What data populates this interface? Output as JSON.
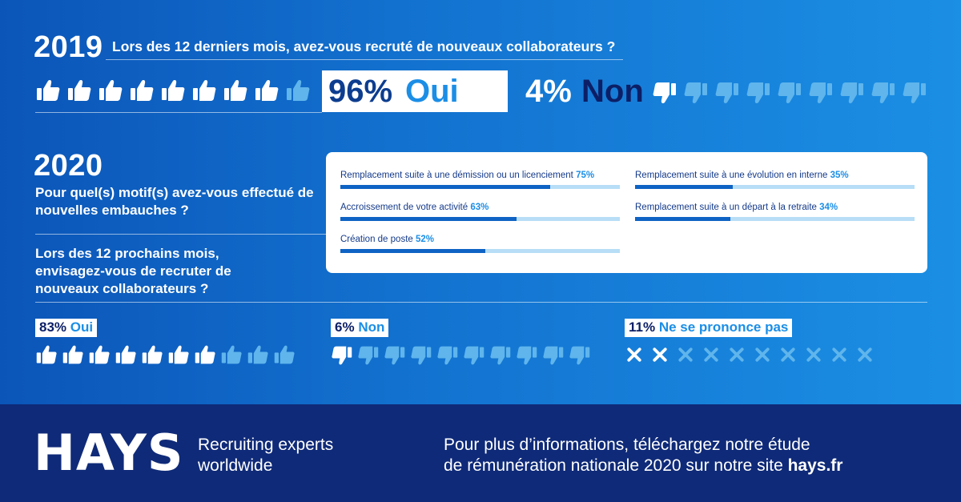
{
  "section_2019": {
    "year": "2019",
    "question": "Lors des 12 derniers mois, avez-vous recruté de nouveaux collaborateurs ?",
    "yes_pct": "96%",
    "yes_label": "Oui",
    "no_pct": "4%",
    "no_label": "Non",
    "thumbs_up_filled": 8,
    "thumbs_up_total": 9,
    "thumbs_down_filled": 1,
    "thumbs_down_total": 9
  },
  "section_2020": {
    "year": "2020",
    "question": "Pour quel(s) motif(s) avez-vous effectué de nouvelles embauches ?",
    "reasons": [
      {
        "label": "Remplacement suite à une démission ou un licenciement",
        "pct": "75%",
        "value": 75
      },
      {
        "label": "Accroissement de votre activité",
        "pct": "63%",
        "value": 63
      },
      {
        "label": "Création de poste",
        "pct": "52%",
        "value": 52
      },
      {
        "label": "Remplacement suite à une évolution en interne",
        "pct": "35%",
        "value": 35
      },
      {
        "label": "Remplacement suite à un départ à la retraite",
        "pct": "34%",
        "value": 34
      }
    ]
  },
  "section_next": {
    "question": "Lors des 12 prochains mois, envisagez-vous de recruter de nouveaux collaborateurs ?",
    "yes_pct": "83%",
    "yes_label": "Oui",
    "no_pct": "6%",
    "no_label": "Non",
    "undecided_pct": "11%",
    "undecided_label": "Ne se prononce pas",
    "thumbs_up_filled": 7,
    "thumbs_up_total": 10,
    "thumbs_down_filled": 1,
    "thumbs_down_total": 10,
    "cross_filled": 2,
    "cross_total": 10
  },
  "footer": {
    "logo": "HAYS",
    "tagline_line1": "Recruiting experts",
    "tagline_line2": "worldwide",
    "info_line1": "Pour plus d’informations, téléchargez notre étude",
    "info_line2_prefix": "de rémunération nationale 2020 sur notre site ",
    "info_link": "hays.fr"
  },
  "colors": {
    "background_start": "#0b55b8",
    "background_end": "#1b8fe4",
    "footer": "#0f2a78",
    "accent": "#1b8ee6",
    "navy": "#0c1f66",
    "icon_dim": "#5fb5ec"
  },
  "icons": {
    "yes": "thumbs-up-icon",
    "no": "thumbs-down-icon",
    "undecided": "cross-icon"
  }
}
